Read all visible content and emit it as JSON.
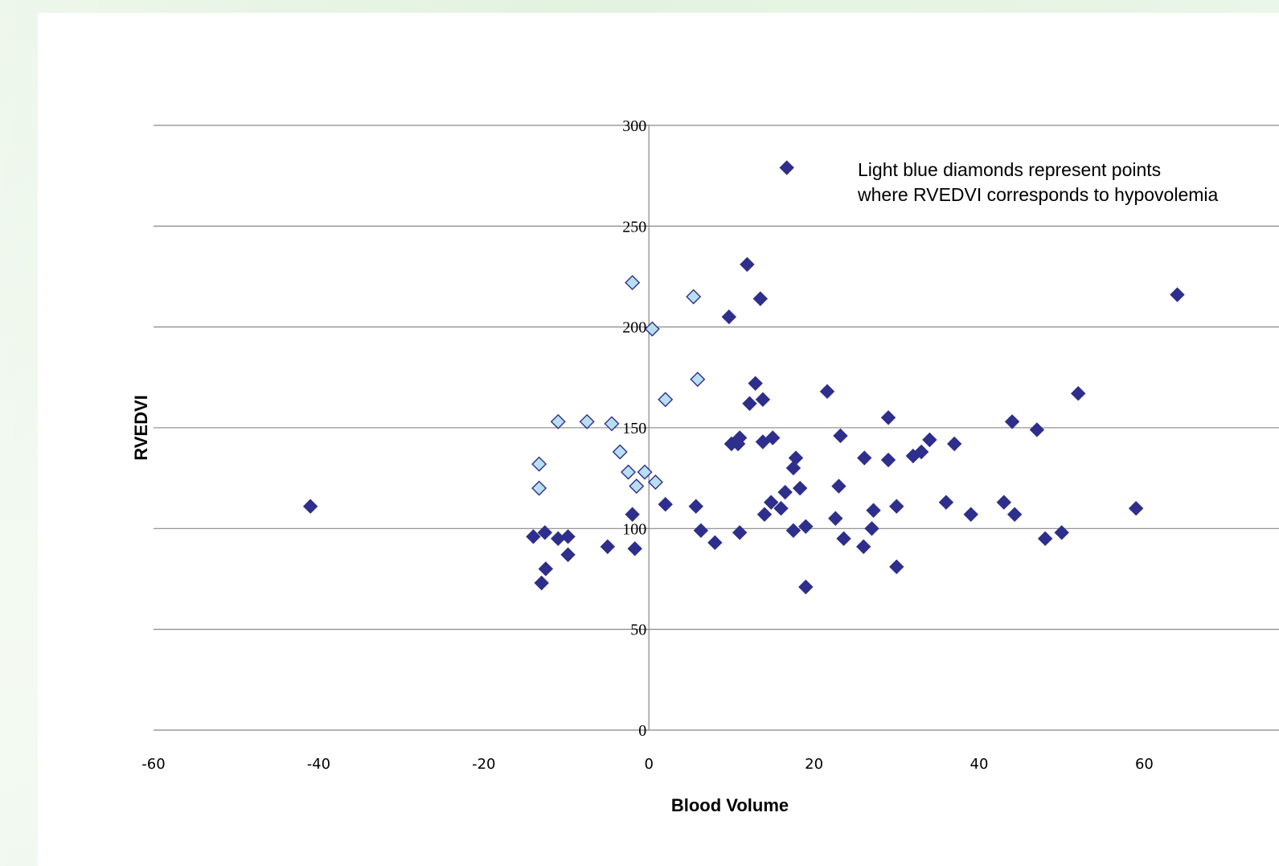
{
  "chart_data": {
    "type": "scatter",
    "title": "",
    "xlabel": "Blood Volume",
    "ylabel": "RVEDVI",
    "xlim": [
      -60,
      80
    ],
    "ylim": [
      0,
      300
    ],
    "x_ticks": [
      -60,
      -40,
      -20,
      0,
      20,
      40,
      60
    ],
    "y_ticks": [
      0,
      50,
      100,
      150,
      200,
      250,
      300
    ],
    "grid": "horizontal",
    "annotation": [
      "Light blue diamonds represent points",
      "where RVEDVI corresponds to hypovolemia"
    ],
    "colors": {
      "dark_marker": "#2e2e8c",
      "light_marker": "#b8dff0",
      "light_marker_edge": "#2e2e8c",
      "gridline": "#888888"
    },
    "series": [
      {
        "marker": "dark-diamond",
        "points": [
          [
            -41,
            111
          ],
          [
            -14,
            96
          ],
          [
            -12.6,
            98
          ],
          [
            -11,
            95
          ],
          [
            -9.8,
            96
          ],
          [
            -13,
            73
          ],
          [
            -12.5,
            80
          ],
          [
            -9.8,
            87
          ],
          [
            -5,
            91
          ],
          [
            -1.7,
            90
          ],
          [
            -2,
            107
          ],
          [
            2,
            112
          ],
          [
            5.7,
            111
          ],
          [
            6.3,
            99
          ],
          [
            8,
            93
          ],
          [
            9.7,
            205
          ],
          [
            11.9,
            231
          ],
          [
            13.5,
            214
          ],
          [
            10,
            142
          ],
          [
            10.8,
            142
          ],
          [
            11,
            145
          ],
          [
            12.2,
            162
          ],
          [
            12.9,
            172
          ],
          [
            13.8,
            164
          ],
          [
            13.8,
            143
          ],
          [
            15,
            145
          ],
          [
            14,
            107
          ],
          [
            14.8,
            113
          ],
          [
            16,
            110
          ],
          [
            16.5,
            118
          ],
          [
            16.7,
            279
          ],
          [
            17.5,
            130
          ],
          [
            17.8,
            135
          ],
          [
            18.3,
            120
          ],
          [
            17.5,
            99
          ],
          [
            19,
            101
          ],
          [
            19,
            71
          ],
          [
            11,
            98
          ],
          [
            21.6,
            168
          ],
          [
            22.6,
            105
          ],
          [
            23,
            121
          ],
          [
            23.2,
            146
          ],
          [
            23.6,
            95
          ],
          [
            26,
            91
          ],
          [
            26.1,
            135
          ],
          [
            27,
            100
          ],
          [
            27.2,
            109
          ],
          [
            29,
            134
          ],
          [
            29,
            155
          ],
          [
            30,
            111
          ],
          [
            30,
            81
          ],
          [
            32,
            136
          ],
          [
            33,
            138
          ],
          [
            34,
            144
          ],
          [
            36,
            113
          ],
          [
            37,
            142
          ],
          [
            39,
            107
          ],
          [
            43,
            113
          ],
          [
            44,
            153
          ],
          [
            44.3,
            107
          ],
          [
            47,
            149
          ],
          [
            48,
            95
          ],
          [
            50,
            98
          ],
          [
            52,
            167
          ],
          [
            59,
            110
          ],
          [
            64,
            216
          ]
        ]
      },
      {
        "marker": "light-diamond",
        "points": [
          [
            -2,
            222
          ],
          [
            5.4,
            215
          ],
          [
            0.4,
            199
          ],
          [
            5.9,
            174
          ],
          [
            2,
            164
          ],
          [
            -11,
            153
          ],
          [
            -7.5,
            153
          ],
          [
            -4.5,
            152
          ],
          [
            -3.5,
            138
          ],
          [
            -2.5,
            128
          ],
          [
            -0.5,
            128
          ],
          [
            0.8,
            123
          ],
          [
            -1.5,
            121
          ],
          [
            -13.3,
            132
          ],
          [
            -13.3,
            120
          ]
        ]
      }
    ]
  }
}
